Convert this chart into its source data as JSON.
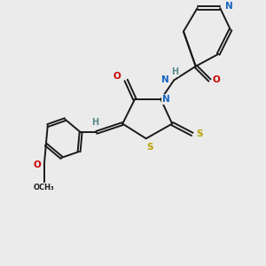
{
  "bg_color": "#ebebeb",
  "bond_color": "#1a1a1a",
  "atom_colors": {
    "N": "#1565c0",
    "O": "#cc0000",
    "S": "#b8a000",
    "H": "#5a8a8a",
    "C": "#1a1a1a"
  },
  "fig_width": 3.0,
  "fig_height": 3.0,
  "dpi": 100
}
